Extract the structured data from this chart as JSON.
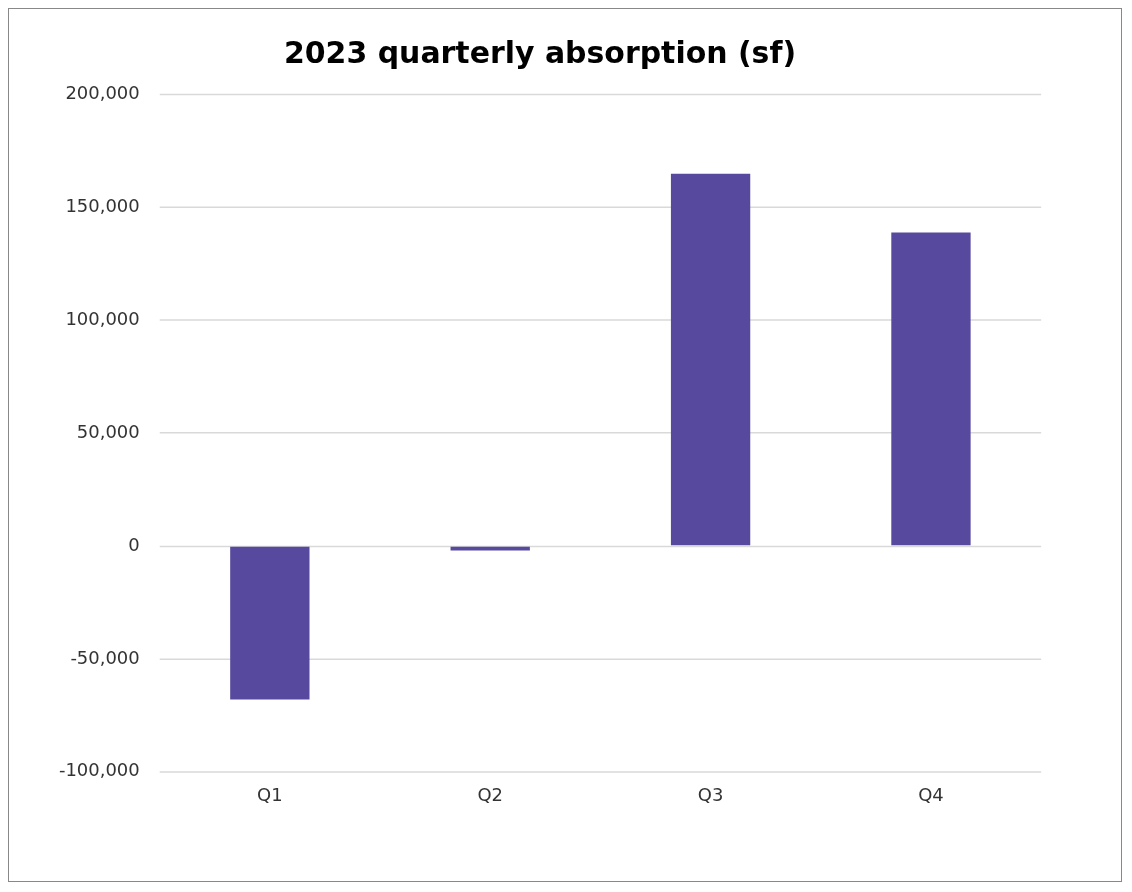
{
  "chart_data": {
    "type": "bar",
    "title": "2023 quarterly absorption (sf)",
    "categories": [
      "Q1",
      "Q2",
      "Q3",
      "Q4"
    ],
    "values": [
      -68000,
      -2000,
      165000,
      139000
    ],
    "color": "#574a9e",
    "ylim": [
      -100000,
      200000
    ],
    "yticks": [
      {
        "value": -100000,
        "label": "-100,000"
      },
      {
        "value": -50000,
        "label": "-50,000"
      },
      {
        "value": 0,
        "label": "0"
      },
      {
        "value": 50000,
        "label": "50,000"
      },
      {
        "value": 100000,
        "label": "100,000"
      },
      {
        "value": 150000,
        "label": "150,000"
      },
      {
        "value": 200000,
        "label": "200,000"
      }
    ],
    "grid": "y",
    "legend": false
  }
}
